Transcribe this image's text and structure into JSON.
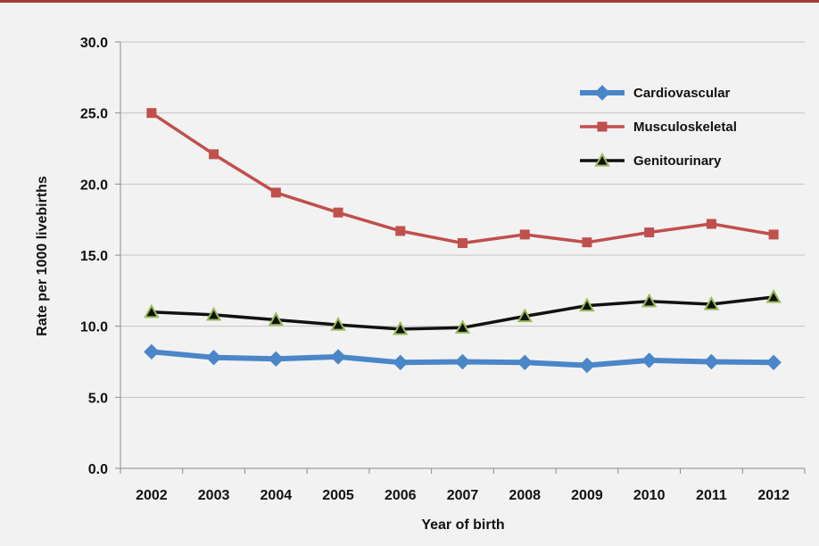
{
  "chart_data": {
    "type": "line",
    "title": "",
    "xlabel": "Year of birth",
    "ylabel": "Rate per 1000 livebirths",
    "categories": [
      "2002",
      "2003",
      "2004",
      "2005",
      "2006",
      "2007",
      "2008",
      "2009",
      "2010",
      "2011",
      "2012"
    ],
    "ylim": [
      0,
      30
    ],
    "yticks": [
      "0.0",
      "5.0",
      "10.0",
      "15.0",
      "20.0",
      "25.0",
      "30.0"
    ],
    "grid": "horizontal",
    "legend_position": "top-right",
    "series": [
      {
        "name": "Cardiovascular",
        "color": "#4a86c8",
        "marker": "diamond",
        "values": [
          8.2,
          7.8,
          7.7,
          7.85,
          7.45,
          7.5,
          7.45,
          7.25,
          7.6,
          7.5,
          7.45
        ]
      },
      {
        "name": "Musculoskeletal",
        "color": "#c0504d",
        "marker": "square",
        "values": [
          25.0,
          22.1,
          19.4,
          18.0,
          16.7,
          15.85,
          16.45,
          15.9,
          16.6,
          17.2,
          16.45
        ]
      },
      {
        "name": "Genitourinary",
        "color": "#111111",
        "marker": "triangle",
        "marker_fill": "#9bbb59",
        "values": [
          11.0,
          10.8,
          10.45,
          10.1,
          9.8,
          9.9,
          10.7,
          11.45,
          11.75,
          11.55,
          12.05
        ]
      }
    ]
  }
}
